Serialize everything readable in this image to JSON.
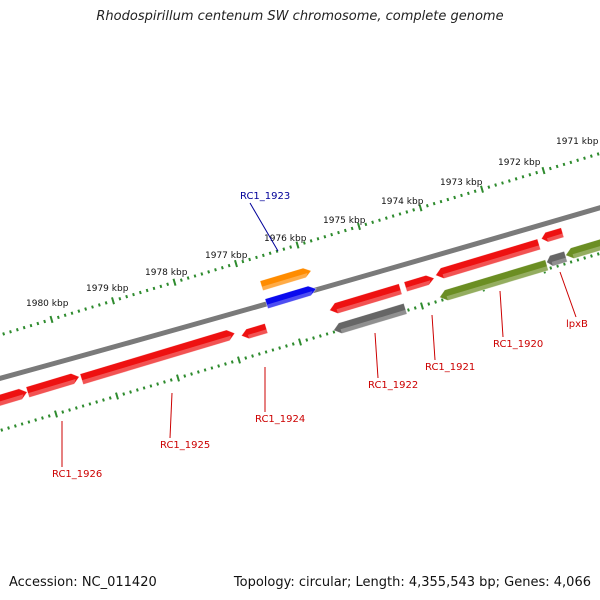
{
  "title": "Rhodospirillum centenum SW chromosome, complete genome",
  "footer": {
    "accession": "Accession: NC_011420",
    "topology": "Topology: circular; Length: 4,355,543 bp; Genes: 4,066"
  },
  "colors": {
    "background": "#ffffff",
    "backbone": "#7a7a7a",
    "scale_ticks": "#2e8b2e",
    "gene_red": "#ee1111",
    "gene_orange": "#ff8c00",
    "gene_blue": "#0a0aee",
    "gene_gray": "#666666",
    "gene_olive": "#6b8e23",
    "label_red": "#cc0000",
    "label_blue": "#000099"
  },
  "scale": {
    "labels": [
      "1980 kbp",
      "1979 kbp",
      "1978 kbp",
      "1977 kbp",
      "1976 kbp",
      "1975 kbp",
      "1974 kbp",
      "1973 kbp",
      "1972 kbp",
      "1971 kbp"
    ]
  },
  "genes": [
    {
      "id": "rc1-1926",
      "label": "RC1_1926",
      "strand": "+",
      "color": "gene_red",
      "label_color": "label_red"
    },
    {
      "id": "rc1-1925",
      "label": "RC1_1925",
      "strand": "+",
      "color": "gene_red",
      "label_color": "label_red"
    },
    {
      "id": "rc1-1924",
      "label": "RC1_1924",
      "strand": "+",
      "color": "gene_red",
      "label_color": "label_red"
    },
    {
      "id": "rc1-1923-a",
      "label": "",
      "strand": "+",
      "color": "gene_orange",
      "label_color": "label_blue"
    },
    {
      "id": "rc1-1923",
      "label": "RC1_1923",
      "strand": "+",
      "color": "gene_blue",
      "label_color": "label_blue"
    },
    {
      "id": "rc1-1922-a",
      "label": "",
      "strand": "-",
      "color": "gene_red",
      "label_color": "label_red"
    },
    {
      "id": "rc1-1922",
      "label": "RC1_1922",
      "strand": "-",
      "color": "gene_gray",
      "label_color": "label_red"
    },
    {
      "id": "rc1-1921",
      "label": "RC1_1921",
      "strand": "-",
      "color": "gene_red",
      "label_color": "label_red"
    },
    {
      "id": "rc1-1920-a",
      "label": "",
      "strand": "+",
      "color": "gene_red",
      "label_color": "label_red"
    },
    {
      "id": "rc1-1920",
      "label": "RC1_1920",
      "strand": "-",
      "color": "gene_olive",
      "label_color": "label_red"
    },
    {
      "id": "rc1-1919-a",
      "label": "",
      "strand": "-",
      "color": "gene_red",
      "label_color": "label_red"
    },
    {
      "id": "lpxb-a",
      "label": "",
      "strand": "-",
      "color": "gene_gray",
      "label_color": "label_red"
    },
    {
      "id": "lpxb",
      "label": "lpxB",
      "strand": "-",
      "color": "gene_olive",
      "label_color": "label_red"
    },
    {
      "id": "rc1-1918-a",
      "label": "",
      "strand": "-",
      "color": "gene_red",
      "label_color": "label_red"
    }
  ]
}
